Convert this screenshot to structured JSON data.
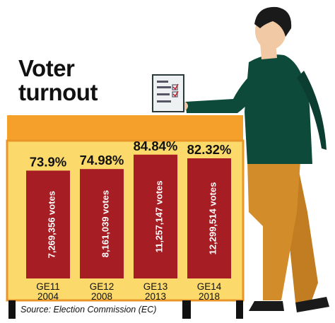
{
  "title_line1": "Voter",
  "title_line2": "turnout",
  "source": "Source: Election Commission (EC)",
  "colors": {
    "bar": "#a61d24",
    "board": "#fbd96b",
    "board_top": "#f5a02b",
    "board_border": "#e8962a",
    "shirt": "#0e4a3a",
    "trousers": "#d38c2a",
    "skin": "#f1c9a5",
    "hair": "#1a1a1a"
  },
  "chart_data": {
    "type": "bar",
    "categories": [
      {
        "line1": "GE11",
        "line2": "2004"
      },
      {
        "line1": "GE12",
        "line2": "2008"
      },
      {
        "line1": "GE13",
        "line2": "2013"
      },
      {
        "line1": "GE14",
        "line2": "2018"
      }
    ],
    "values": [
      73.9,
      74.98,
      84.84,
      82.32
    ],
    "value_labels": [
      "73.9%",
      "74.98%",
      "84.84%",
      "82.32%"
    ],
    "votes_labels": [
      "7,269,356 votes",
      "8,161,039 votes",
      "11,257,147 votes",
      "12,299,514 votes"
    ],
    "unit": "%",
    "ylim": [
      0,
      100
    ]
  }
}
